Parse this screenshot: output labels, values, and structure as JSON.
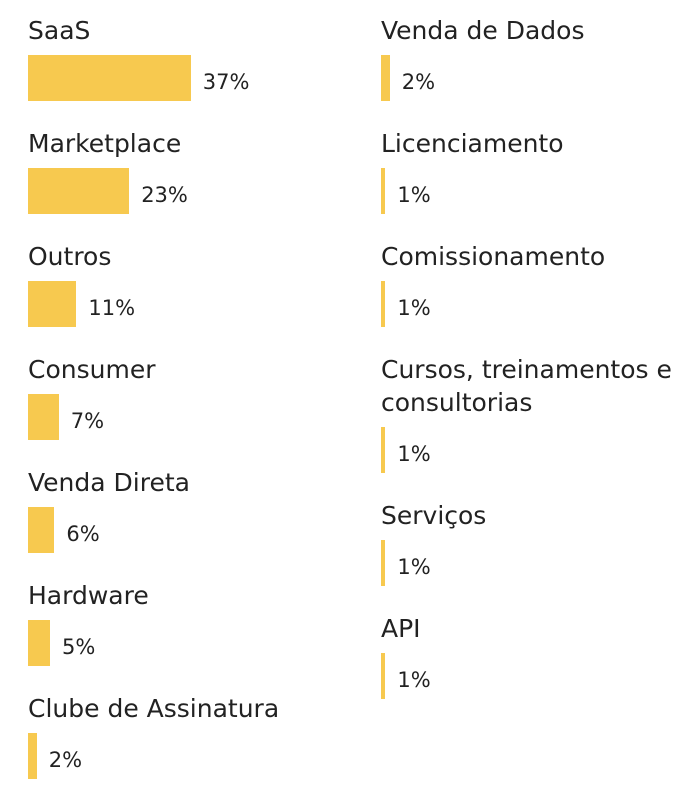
{
  "chart_data": {
    "type": "bar",
    "orientation": "horizontal",
    "color": "#f7c94f",
    "categories": [
      "SaaS",
      "Marketplace",
      "Outros",
      "Consumer",
      "Venda Direta",
      "Hardware",
      "Clube de Assinatura",
      "Venda de Dados",
      "Licenciamento",
      "Comissionamento",
      "Cursos, treinamentos e consultorias",
      "Serviços",
      "API"
    ],
    "values": [
      37,
      23,
      11,
      7,
      6,
      5,
      2,
      2,
      1,
      1,
      1,
      1,
      1
    ],
    "value_labels": [
      "37%",
      "23%",
      "11%",
      "7%",
      "6%",
      "5%",
      "2%",
      "2%",
      "1%",
      "1%",
      "1%",
      "1%",
      "1%"
    ]
  }
}
